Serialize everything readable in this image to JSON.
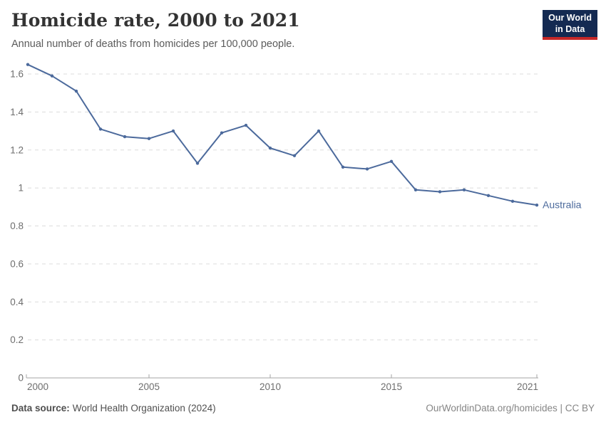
{
  "header": {
    "title": "Homicide rate, 2000 to 2021",
    "subtitle": "Annual number of deaths from homicides per 100,000 people.",
    "logo": {
      "line1": "Our World",
      "line2": "in Data"
    }
  },
  "footer": {
    "source_label": "Data source:",
    "source_text": "World Health Organization (2024)",
    "credit": "OurWorldinData.org/homicides | CC BY"
  },
  "colors": {
    "series_blue": "#4c6a9c",
    "gridline": "#dcdcdc",
    "axis": "#a5a5a5",
    "tick_label": "#6e6e6e",
    "logo_bg": "#142a52",
    "logo_stripe": "#c62828"
  },
  "chart_data": {
    "type": "line",
    "title": "Homicide rate, 2000 to 2021",
    "subtitle": "Annual number of deaths from homicides per 100,000 people.",
    "x": [
      2000,
      2001,
      2002,
      2003,
      2004,
      2005,
      2006,
      2007,
      2008,
      2009,
      2010,
      2011,
      2012,
      2013,
      2014,
      2015,
      2016,
      2017,
      2018,
      2019,
      2020,
      2021
    ],
    "series": [
      {
        "name": "Australia",
        "color": "#4c6a9c",
        "values": [
          1.65,
          1.59,
          1.51,
          1.31,
          1.27,
          1.26,
          1.3,
          1.13,
          1.29,
          1.33,
          1.21,
          1.17,
          1.3,
          1.11,
          1.1,
          1.14,
          0.99,
          0.98,
          0.99,
          0.96,
          0.93,
          0.91
        ]
      }
    ],
    "xlabel": "",
    "ylabel": "",
    "xlim": [
      2000,
      2021
    ],
    "ylim": [
      0,
      1.6
    ],
    "yticks": [
      0,
      0.2,
      0.4,
      0.6,
      0.8,
      1.0,
      1.2,
      1.4,
      1.6
    ],
    "ytick_labels": [
      "0",
      "0.2",
      "0.4",
      "0.6",
      "0.8",
      "1",
      "1.2",
      "1.4",
      "1.6"
    ],
    "xticks": [
      2000,
      2005,
      2010,
      2015,
      2021
    ],
    "xtick_labels": [
      "2000",
      "2005",
      "2010",
      "2015",
      "2021"
    ],
    "grid": "horizontal-dashed",
    "legend": "end-of-line-label"
  }
}
